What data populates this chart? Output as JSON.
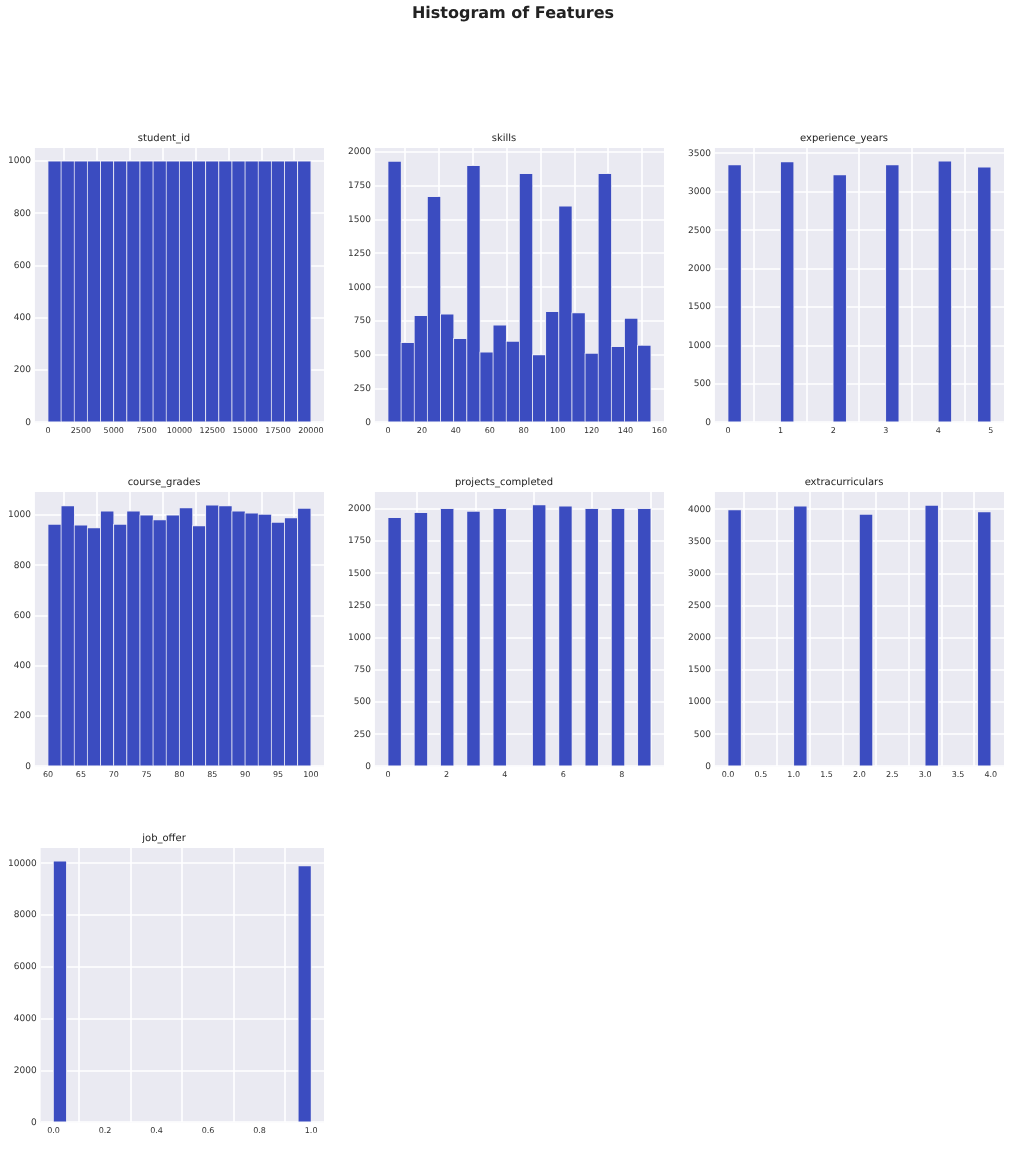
{
  "chart_data": [
    {
      "type": "other",
      "title": "Histogram of Features"
    },
    {
      "type": "histogram",
      "title": "student_id",
      "color": "#3b4cc0",
      "grid": true,
      "bins": [
        0,
        1000,
        2000,
        3000,
        4000,
        5000,
        6000,
        7000,
        8000,
        9000,
        10000,
        11000,
        12000,
        13000,
        14000,
        15000,
        16000,
        17000,
        18000,
        19000,
        20000
      ],
      "values": [
        1000,
        1000,
        1000,
        1000,
        1000,
        1000,
        1000,
        1000,
        1000,
        1000,
        1000,
        1000,
        1000,
        1000,
        1000,
        1000,
        1000,
        1000,
        1000,
        1000
      ],
      "xlim": [
        -1000,
        21000
      ],
      "ylim": [
        0,
        1050
      ],
      "xticks": [
        0,
        2500,
        5000,
        7500,
        10000,
        12500,
        15000,
        17500,
        20000
      ],
      "yticks": [
        0,
        200,
        400,
        600,
        800,
        1000
      ]
    },
    {
      "type": "histogram",
      "title": "skills",
      "color": "#3b4cc0",
      "grid": true,
      "bins": [
        0,
        7.75,
        15.5,
        23.25,
        31,
        38.75,
        46.5,
        54.25,
        62,
        69.75,
        77.5,
        85.25,
        93,
        100.75,
        108.5,
        116.25,
        124,
        131.75,
        139.5,
        147.25,
        155
      ],
      "values": [
        1930,
        590,
        790,
        1670,
        800,
        620,
        1900,
        520,
        720,
        600,
        1840,
        500,
        820,
        1600,
        810,
        510,
        1840,
        560,
        770,
        570
      ],
      "xlim": [
        -7.75,
        162.75
      ],
      "ylim": [
        0,
        2030
      ],
      "xticks": [
        0,
        20,
        40,
        60,
        80,
        100,
        120,
        140,
        160
      ],
      "yticks": [
        0,
        250,
        500,
        750,
        1000,
        1250,
        1500,
        1750,
        2000
      ]
    },
    {
      "type": "histogram",
      "title": "experience_years",
      "color": "#3b4cc0",
      "grid": true,
      "bins": [
        0,
        0.25,
        0.5,
        0.75,
        1,
        1.25,
        1.5,
        1.75,
        2,
        2.25,
        2.5,
        2.75,
        3,
        3.25,
        3.5,
        3.75,
        4,
        4.25,
        4.5,
        4.75,
        5
      ],
      "values": [
        3350,
        0,
        0,
        0,
        3390,
        0,
        0,
        0,
        3220,
        0,
        0,
        0,
        3350,
        0,
        0,
        0,
        3400,
        0,
        0,
        3320
      ],
      "xlim": [
        -0.25,
        5.25
      ],
      "ylim": [
        0,
        3570
      ],
      "xticks": [
        0,
        1,
        2,
        3,
        4,
        5
      ],
      "yticks": [
        0,
        500,
        1000,
        1500,
        2000,
        2500,
        3000,
        3500
      ]
    },
    {
      "type": "histogram",
      "title": "course_grades",
      "color": "#3b4cc0",
      "grid": true,
      "bins": [
        60,
        62,
        64,
        66,
        68,
        70,
        72,
        74,
        76,
        78,
        80,
        82,
        84,
        86,
        88,
        90,
        92,
        94,
        96,
        98,
        100
      ],
      "values": [
        963,
        1037,
        960,
        949,
        1016,
        963,
        1016,
        1000,
        981,
        1000,
        1029,
        957,
        1040,
        1037,
        1016,
        1008,
        1003,
        971,
        989,
        1027
      ],
      "xlim": [
        58,
        102
      ],
      "ylim": [
        0,
        1092
      ],
      "xticks": [
        60,
        65,
        70,
        75,
        80,
        85,
        90,
        95,
        100
      ],
      "yticks": [
        0,
        200,
        400,
        600,
        800,
        1000
      ]
    },
    {
      "type": "histogram",
      "title": "projects_completed",
      "color": "#3b4cc0",
      "grid": true,
      "bins": [
        0,
        0.45,
        0.9,
        1.35,
        1.8,
        2.25,
        2.7,
        3.15,
        3.6,
        4.05,
        4.5,
        4.95,
        5.4,
        5.85,
        6.3,
        6.75,
        7.2,
        7.65,
        8.1,
        8.55,
        9
      ],
      "values": [
        1930,
        0,
        1970,
        0,
        2000,
        0,
        1980,
        0,
        2000,
        0,
        0,
        2030,
        0,
        2020,
        0,
        2000,
        0,
        2000,
        0,
        2000
      ],
      "xlim": [
        -0.45,
        9.45
      ],
      "ylim": [
        0,
        2130
      ],
      "xticks": [
        0,
        2,
        4,
        6,
        8
      ],
      "yticks": [
        0,
        250,
        500,
        750,
        1000,
        1250,
        1500,
        1750,
        2000
      ]
    },
    {
      "type": "histogram",
      "title": "extracurriculars",
      "color": "#3b4cc0",
      "grid": true,
      "bins": [
        0,
        0.2,
        0.4,
        0.6,
        0.8,
        1,
        1.2,
        1.4,
        1.6,
        1.8,
        2,
        2.2,
        2.4,
        2.6,
        2.8,
        3,
        3.2,
        3.4,
        3.6,
        3.8,
        4
      ],
      "values": [
        3990,
        0,
        0,
        0,
        0,
        4050,
        0,
        0,
        0,
        0,
        3920,
        0,
        0,
        0,
        0,
        4060,
        0,
        0,
        0,
        3960
      ],
      "xlim": [
        -0.2,
        4.2
      ],
      "ylim": [
        0,
        4270
      ],
      "xticks": [
        {
          "value": 0,
          "label": "0.0"
        },
        0.5,
        {
          "value": 1,
          "label": "1.0"
        },
        1.5,
        {
          "value": 2,
          "label": "2.0"
        },
        2.5,
        {
          "value": 3,
          "label": "3.0"
        },
        3.5,
        {
          "value": 4,
          "label": "4.0"
        }
      ],
      "yticks": [
        0,
        500,
        1000,
        1500,
        2000,
        2500,
        3000,
        3500,
        4000
      ]
    },
    {
      "type": "histogram",
      "title": "job_offer",
      "color": "#3b4cc0",
      "grid": true,
      "bins": [
        0,
        0.05,
        0.1,
        0.15,
        0.2,
        0.25,
        0.3,
        0.35,
        0.4,
        0.45,
        0.5,
        0.55,
        0.6,
        0.65,
        0.7,
        0.75,
        0.8,
        0.85,
        0.9,
        0.95,
        1
      ],
      "values": [
        10080,
        0,
        0,
        0,
        0,
        0,
        0,
        0,
        0,
        0,
        0,
        0,
        0,
        0,
        0,
        0,
        0,
        0,
        0,
        9900
      ],
      "xlim": [
        -0.05,
        1.05
      ],
      "ylim": [
        0,
        10590
      ],
      "xticks": [
        {
          "value": 0,
          "label": "0.0"
        },
        0.2,
        0.4,
        0.6,
        0.8,
        {
          "value": 1,
          "label": "1.0"
        }
      ],
      "yticks": [
        0,
        2000,
        4000,
        6000,
        8000,
        10000
      ]
    }
  ]
}
